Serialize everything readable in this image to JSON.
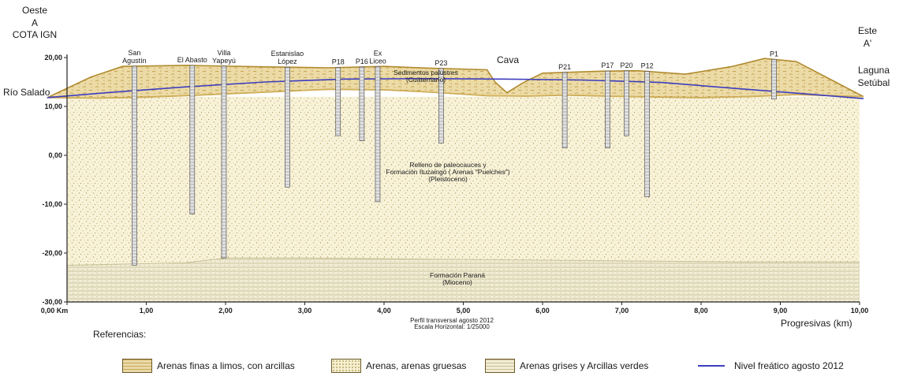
{
  "header": {
    "west": [
      "Oeste",
      "A",
      "COTA IGN"
    ],
    "east": [
      "Este",
      "A'"
    ],
    "river": "Río Salado",
    "lagoon": [
      "Laguna",
      "Setúbal"
    ],
    "cava": "Cava"
  },
  "y_ticks": [
    "20,00",
    "10,00",
    "0,00",
    "-10,00",
    "-20,00",
    "-30,00"
  ],
  "x_ticks": [
    "0,00 Km",
    "1,00",
    "2,00",
    "3,00",
    "4,00",
    "5,00",
    "6,00",
    "7,00",
    "8,00",
    "9,00",
    "10,00"
  ],
  "x_axis_label": "Progresivas (km)",
  "boreholes": [
    {
      "name": "San Agustín",
      "label_lines": [
        "San",
        "Agustín"
      ],
      "km": 0.85,
      "bottom": -22.5
    },
    {
      "name": "El Abasto",
      "label_lines": [
        "El Abasto"
      ],
      "km": 1.58,
      "bottom": -12
    },
    {
      "name": "Villa Yapeyú",
      "label_lines": [
        "Villa",
        "Yapeyú"
      ],
      "km": 1.98,
      "bottom": -21
    },
    {
      "name": "Estanislao López",
      "label_lines": [
        "Estanislao",
        "López"
      ],
      "km": 2.78,
      "bottom": -6.5
    },
    {
      "name": "P18",
      "label_lines": [
        "P18"
      ],
      "km": 3.42,
      "bottom": 4
    },
    {
      "name": "P16",
      "label_lines": [
        "P16"
      ],
      "km": 3.72,
      "bottom": 3
    },
    {
      "name": "Ex Liceo",
      "label_lines": [
        "Ex",
        "Liceo"
      ],
      "km": 3.92,
      "bottom": -9.5
    },
    {
      "name": "P23",
      "label_lines": [
        "P23"
      ],
      "km": 4.72,
      "bottom": 2.5
    },
    {
      "name": "P21",
      "label_lines": [
        "P21"
      ],
      "km": 6.28,
      "bottom": 1.5
    },
    {
      "name": "P17",
      "label_lines": [
        "P17"
      ],
      "km": 6.82,
      "bottom": 1.5
    },
    {
      "name": "P20",
      "label_lines": [
        "P20"
      ],
      "km": 7.06,
      "bottom": 4
    },
    {
      "name": "P12",
      "label_lines": [
        "P12"
      ],
      "km": 7.32,
      "bottom": -8.5
    },
    {
      "name": "P1",
      "label_lines": [
        "P1"
      ],
      "km": 8.92,
      "bottom": 11.5
    }
  ],
  "layers": {
    "upper": [
      "Sedimentos palustres",
      "(Cuaternario)"
    ],
    "middle": [
      "Relleno de paleocauces  y",
      "Formación Ituzaingó  ( Arenas \"Puelches\")",
      "(Pleistoceno)"
    ],
    "lower": [
      "Formación Paraná",
      "(Mioceno)"
    ]
  },
  "footer": {
    "profile": "Perfil transversal agosto 2012",
    "scale": "Escala Horizontal: 1/25000",
    "references": "Referencias:"
  },
  "legend": [
    {
      "key": "fine",
      "label": "Arenas finas a limos, con arcillas"
    },
    {
      "key": "sand",
      "label": "Arenas, arenas gruesas"
    },
    {
      "key": "grey",
      "label": "Arenas grises y Arcillas verdes"
    },
    {
      "key": "line",
      "label": "Nivel freático agosto 2012"
    }
  ],
  "colors": {
    "fine_sand_fill": "#e8d49a",
    "sand_fill": "#f6efcf",
    "grey_clay_fill": "#efe9cf",
    "water_table": "#3d3dbf",
    "outline": "#b08a2e"
  }
}
